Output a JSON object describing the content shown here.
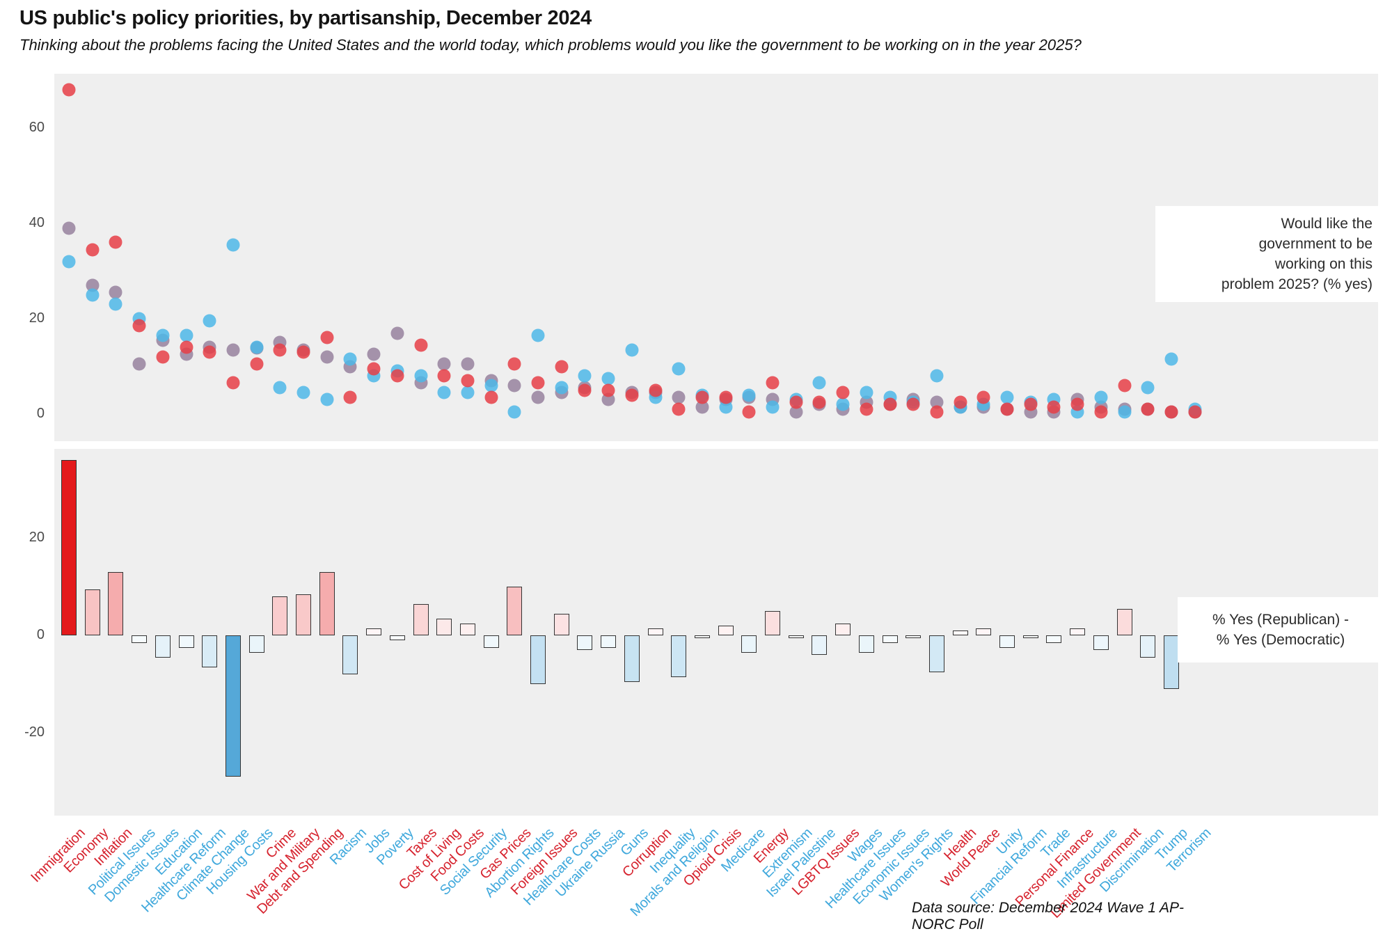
{
  "title": "US public's policy priorities, by partisanship, December 2024",
  "subtitle": "Thinking about the problems facing the United States and the world today, which problems would you like the government to be working on in the year 2025?",
  "source": "Data source: December 2024 Wave 1 AP-NORC Poll",
  "annotations": {
    "top_lines": [
      "Would like the",
      "government to be",
      "working on this",
      "problem 2025? (% yes)"
    ],
    "bottom_lines": [
      "% Yes (Republican) -",
      "% Yes (Democratic)"
    ]
  },
  "colors": {
    "panel_background": "#efefef",
    "republican_dot": "rgba(230,62,70,0.85)",
    "democratic_dot": "rgba(77,183,232,0.85)",
    "overall_dot": "rgba(151,129,158,0.85)",
    "bar_positive_full": "#e41a1c",
    "bar_negative_full": "#55a8d8",
    "bar_border": "#333333",
    "republican_label": "#d6232e",
    "democratic_label": "#3fa8dc",
    "tick_text": "#4a4a4a"
  },
  "chart_data": [
    {
      "type": "scatter",
      "title": "Would like the government to be working on this problem 2025? (% yes)",
      "ylim": [
        -6,
        72
      ],
      "yticks": [
        0,
        20,
        40,
        60
      ],
      "grid": false,
      "legend": "none",
      "categories": [
        "Immigration",
        "Economy",
        "Inflation",
        "Political Issues",
        "Domestic Issues",
        "Education",
        "Healthcare Reform",
        "Climate Change",
        "Housing Costs",
        "Crime",
        "War and Military",
        "Debt and Spending",
        "Racism",
        "Jobs",
        "Poverty",
        "Taxes",
        "Cost of Living",
        "Food Costs",
        "Social Security",
        "Gas Prices",
        "Abortion Rights",
        "Foreign Issues",
        "Healthcare Costs",
        "Ukraine Russia",
        "Guns",
        "Corruption",
        "Inequality",
        "Morals and Religion",
        "Opioid Crisis",
        "Medicare",
        "Energy",
        "Extremism",
        "Israel Palestine",
        "LGBTQ Issues",
        "Wages",
        "Healthcare Issues",
        "Economic Issues",
        "Women's Rights",
        "Health",
        "World Peace",
        "Unity",
        "Financial Reform",
        "Trade",
        "Personal Finance",
        "Infrastructure",
        "Limited Government",
        "Discrimination",
        "Trump",
        "Terrorism"
      ],
      "category_label_party": [
        "rep",
        "rep",
        "rep",
        "dem",
        "dem",
        "dem",
        "dem",
        "dem",
        "dem",
        "rep",
        "rep",
        "rep",
        "dem",
        "dem",
        "dem",
        "rep",
        "rep",
        "rep",
        "dem",
        "rep",
        "dem",
        "rep",
        "dem",
        "dem",
        "dem",
        "rep",
        "dem",
        "dem",
        "rep",
        "dem",
        "rep",
        "dem",
        "dem",
        "rep",
        "dem",
        "dem",
        "dem",
        "dem",
        "rep",
        "rep",
        "dem",
        "dem",
        "dem",
        "rep",
        "dem",
        "rep",
        "dem",
        "dem",
        "dem"
      ],
      "series": [
        {
          "name": "Republican",
          "color_key": "republican_dot",
          "values": [
            68,
            34.5,
            36,
            18.5,
            12,
            14,
            13,
            6.5,
            10.5,
            13.5,
            13,
            16,
            3.5,
            9.5,
            8,
            14.5,
            8,
            7,
            3.5,
            10.5,
            6.5,
            10,
            5,
            5,
            4,
            5,
            1,
            3.5,
            3.5,
            0.5,
            6.5,
            2.5,
            2.5,
            4.5,
            1,
            2,
            2,
            0.5,
            2.5,
            3.5,
            1,
            2,
            1.5,
            2,
            0.5,
            6,
            1,
            0.5,
            0.5
          ]
        },
        {
          "name": "Democratic",
          "color_key": "democratic_dot",
          "values": [
            32,
            25,
            23,
            20,
            16.5,
            16.5,
            19.5,
            35.5,
            14,
            5.5,
            4.5,
            3,
            11.5,
            8,
            9,
            8,
            4.5,
            4.5,
            6,
            0.5,
            16.5,
            5.5,
            8,
            7.5,
            13.5,
            3.5,
            9.5,
            4,
            1.5,
            4,
            1.5,
            3,
            6.5,
            2,
            4.5,
            3.5,
            2.5,
            8,
            1.5,
            2,
            3.5,
            2.5,
            3,
            0.5,
            3.5,
            0.5,
            5.5,
            11.5,
            1
          ]
        },
        {
          "name": "Overall",
          "color_key": "overall_dot",
          "values": [
            39,
            27,
            25.5,
            10.5,
            15.5,
            12.5,
            14,
            13.5,
            13.8,
            15,
            13.5,
            12,
            10,
            12.5,
            17,
            6.5,
            10.5,
            10.5,
            7,
            6,
            3.5,
            4.5,
            5.5,
            3,
            4.5,
            4.5,
            3.5,
            1.5,
            3,
            3.5,
            3,
            0.5,
            2,
            1,
            2.5,
            2,
            3,
            2.5,
            1.5,
            1.5,
            1,
            0.5,
            0.5,
            3,
            1.5,
            1,
            1,
            0.5,
            0.5
          ]
        }
      ]
    },
    {
      "type": "bar",
      "title": "% Yes (Republican) - % Yes (Democratic)",
      "ylim": [
        -38,
        38
      ],
      "yticks": [
        20,
        0,
        -20
      ],
      "grid": false,
      "values": [
        36,
        9.5,
        13,
        -1.5,
        -4.5,
        -2.5,
        -6.5,
        -29,
        -3.5,
        8,
        8.5,
        13,
        -8,
        1.5,
        -1,
        6.5,
        3.5,
        2.5,
        -2.5,
        10,
        -10,
        4.5,
        -3,
        -2.5,
        -9.5,
        1.5,
        -8.5,
        -0.5,
        2,
        -3.5,
        5,
        -0.5,
        -4,
        2.5,
        -3.5,
        -1.5,
        -0.5,
        -7.5,
        1,
        1.5,
        -2.5,
        -0.5,
        -1.5,
        1.5,
        -3,
        5.5,
        -4.5,
        -11,
        -0.5
      ]
    }
  ]
}
